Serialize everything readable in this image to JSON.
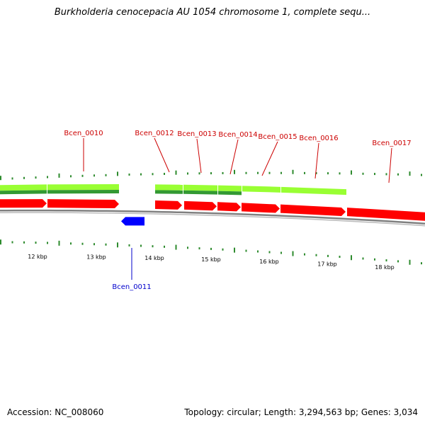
{
  "title": "Burkholderia cenocepacia AU 1054 chromosome 1, complete sequ...",
  "footer": {
    "accession": "Accession: NC_008060",
    "summary": "Topology: circular; Length: 3,294,563 bp; Genes: 3,034"
  },
  "colors": {
    "forward_gene": "#ff0000",
    "reverse_gene": "#0000ff",
    "feature_light": "#99ff33",
    "feature_dark": "#339933",
    "backbone": "#808080",
    "tick": "#2e8b2e",
    "forward_label": "#cc0000",
    "reverse_label": "#0000cc"
  },
  "scale_labels": [
    "12 kbp",
    "13 kbp",
    "14 kbp",
    "15 kbp",
    "16 kbp",
    "17 kbp",
    "18 kbp"
  ],
  "genes": [
    {
      "label": "Bcen_0010",
      "strand": "forward"
    },
    {
      "label": "Bcen_0011",
      "strand": "reverse"
    },
    {
      "label": "Bcen_0012",
      "strand": "forward"
    },
    {
      "label": "Bcen_0013",
      "strand": "forward"
    },
    {
      "label": "Bcen_0014",
      "strand": "forward"
    },
    {
      "label": "Bcen_0015",
      "strand": "forward"
    },
    {
      "label": "Bcen_0016",
      "strand": "forward"
    },
    {
      "label": "Bcen_0017",
      "strand": "forward"
    }
  ]
}
